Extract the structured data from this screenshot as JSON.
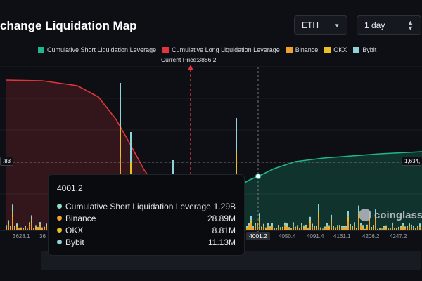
{
  "header": {
    "title": "change Liquidation Map",
    "asset_select": "ETH",
    "period_select": "1 day"
  },
  "legend": [
    {
      "label": "Cumulative Short Liquidation Leverage",
      "color": "#1fb58f"
    },
    {
      "label": "Cumulative Long Liquidation Leverage",
      "color": "#e0353d"
    },
    {
      "label": "Binance",
      "color": "#f0a22e"
    },
    {
      "label": "OKX",
      "color": "#e8c127"
    },
    {
      "label": "Bybit",
      "color": "#8ed3d8"
    }
  ],
  "current_price_label": "Current Price:3886.2",
  "crosshair": {
    "y_left_label": ".83",
    "y_right_label": "1,634,",
    "x_label": "4001.2"
  },
  "tooltip": {
    "title": "4001.2",
    "rows": [
      {
        "name": "Cumulative Short Liquidation Leverage",
        "value": "1.29B",
        "color": "#8be0c6"
      },
      {
        "name": "Binance",
        "value": "28.89M",
        "color": "#f0a22e"
      },
      {
        "name": "OKX",
        "value": "8.81M",
        "color": "#e8c127"
      },
      {
        "name": "Bybit",
        "value": "11.13M",
        "color": "#8ed3d8"
      }
    ]
  },
  "watermark": "coinglass",
  "chart_data": {
    "type": "bar",
    "x_ticks": [
      "3628.1",
      "36",
      "4001.2",
      "4050.4",
      "4091.4",
      "4161.1",
      "4206.2",
      "4247.2"
    ],
    "current_price": 3886.2,
    "crosshair_x": 4001.2,
    "colors": {
      "short": "#1fb58f",
      "long": "#e0353d",
      "binance": "#f0a22e",
      "okx": "#e8c127",
      "bybit": "#8ed3d8"
    }
  }
}
